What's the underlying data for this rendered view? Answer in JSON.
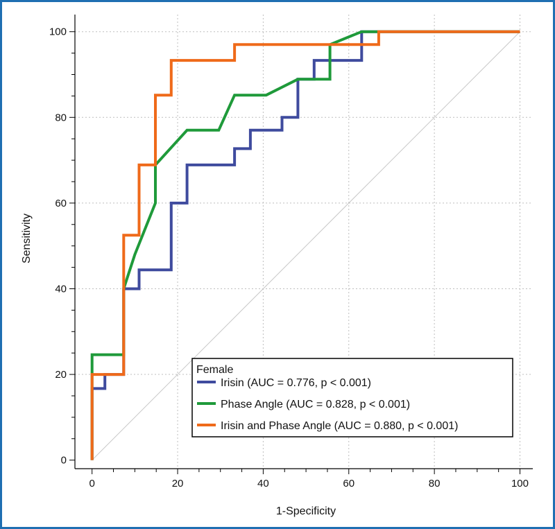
{
  "chart_data": {
    "type": "line",
    "title": "",
    "xlabel": "1-Specificity",
    "ylabel": "Sensitivity",
    "xlim": [
      -4,
      103
    ],
    "ylim": [
      -2,
      104
    ],
    "xticks": [
      0,
      20,
      40,
      60,
      80,
      100
    ],
    "yticks": [
      0,
      20,
      40,
      60,
      80,
      100
    ],
    "grid": true,
    "legend": {
      "title": "Female",
      "placement": "bottom-right"
    },
    "reference_line": {
      "from": [
        0,
        0
      ],
      "to": [
        100,
        100
      ],
      "color": "#c8c8c8"
    },
    "series": [
      {
        "name": "Irisin (AUC = 0.776, p < 0.001)",
        "color": "#3f4b9e",
        "points": [
          [
            0,
            0
          ],
          [
            0,
            16.7
          ],
          [
            3,
            16.7
          ],
          [
            3,
            20
          ],
          [
            7.4,
            20
          ],
          [
            7.4,
            40
          ],
          [
            11,
            40
          ],
          [
            11,
            44.4
          ],
          [
            18.5,
            44.4
          ],
          [
            18.5,
            60
          ],
          [
            22.2,
            60
          ],
          [
            22.2,
            68.9
          ],
          [
            33.3,
            68.9
          ],
          [
            33.3,
            72.7
          ],
          [
            37,
            72.7
          ],
          [
            37,
            77
          ],
          [
            44.4,
            77
          ],
          [
            44.4,
            80
          ],
          [
            48.1,
            80
          ],
          [
            48.1,
            88.9
          ],
          [
            51.9,
            88.9
          ],
          [
            51.9,
            93.3
          ],
          [
            63,
            93.3
          ],
          [
            63,
            100
          ],
          [
            67,
            100
          ],
          [
            100,
            100
          ]
        ]
      },
      {
        "name": "Phase Angle (AUC = 0.828, p < 0.001)",
        "color": "#1f9a3a",
        "points": [
          [
            0,
            0
          ],
          [
            0,
            24.6
          ],
          [
            7.4,
            24.6
          ],
          [
            7.4,
            40
          ],
          [
            10,
            48
          ],
          [
            14.8,
            60
          ],
          [
            14.8,
            68.9
          ],
          [
            22.2,
            77
          ],
          [
            29.6,
            77
          ],
          [
            33.3,
            85.2
          ],
          [
            40.7,
            85.2
          ],
          [
            48.1,
            88.9
          ],
          [
            55.6,
            88.9
          ],
          [
            55.6,
            97
          ],
          [
            63,
            100
          ],
          [
            67,
            100
          ],
          [
            100,
            100
          ]
        ]
      },
      {
        "name": "Irisin and Phase Angle (AUC = 0.880, p < 0.001)",
        "color": "#ef6a1a",
        "points": [
          [
            0,
            0
          ],
          [
            0,
            20
          ],
          [
            7.4,
            20
          ],
          [
            7.4,
            52.5
          ],
          [
            11,
            52.5
          ],
          [
            11,
            68.9
          ],
          [
            14.8,
            68.9
          ],
          [
            14.8,
            85.2
          ],
          [
            18.5,
            85.2
          ],
          [
            18.5,
            93.3
          ],
          [
            33.3,
            93.3
          ],
          [
            33.3,
            97
          ],
          [
            67,
            97
          ],
          [
            67,
            100
          ],
          [
            100,
            100
          ]
        ]
      }
    ]
  }
}
